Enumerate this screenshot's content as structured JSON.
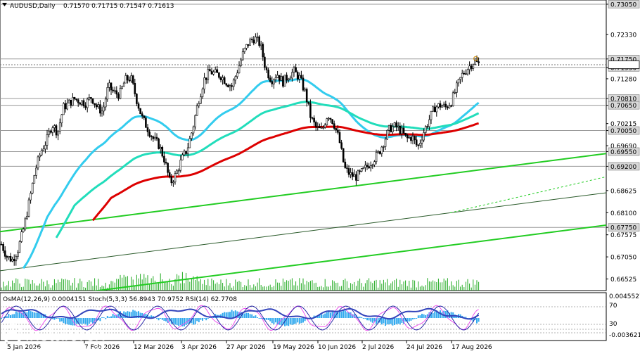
{
  "header": {
    "symbol": "AUDUSD,Daily",
    "ohlc": "0.71570 0.71715 0.71547 0.71613"
  },
  "indicator_header": "OsMA(12,26,9) 0.0004151  Stoch(5,3,3) 56.8943 70.9752  RSI(14) 62.7708",
  "watermark": {
    "brand": "instaforex",
    "tagline": "Instant Forex Trading"
  },
  "colors": {
    "candle": "#000000",
    "ma_fast": "#33ccee",
    "ma_mid": "#22ddbb",
    "ma_slow": "#dd0000",
    "channel": "#22cc22",
    "grid": "#9a9a9a",
    "volume": "#22aa22",
    "osma": "#33aaee",
    "stoch_main": "#1a1aa0",
    "stoch_signal": "#ee44ee",
    "rsi": "#3344bb"
  },
  "chart_data": {
    "type": "candlestick",
    "symbol": "AUDUSD",
    "timeframe": "Daily",
    "ylim": [
      0.6625,
      0.7315
    ],
    "x_tick_labels": [
      "5 Jan 2026",
      "7 Feb 2026",
      "12 Mar 2026",
      "3 Apr 2026",
      "27 Apr 2026",
      "19 May 2026",
      "10 Jun 2026",
      "2 Jul 2026",
      "24 Jul 2026",
      "17 Aug 2026"
    ],
    "y_tick_labels": [
      {
        "value": 0.7305,
        "label": "0.73050",
        "tag": true
      },
      {
        "value": 0.7233,
        "label": "0.72330",
        "tag": false
      },
      {
        "value": 0.7175,
        "label": "0.71750",
        "tag": true
      },
      {
        "value": 0.7155,
        "label": "0.71550",
        "tag": true
      },
      {
        "value": 0.7128,
        "label": "0.71280",
        "tag": false
      },
      {
        "value": 0.7081,
        "label": "0.70810",
        "tag": true
      },
      {
        "value": 0.7065,
        "label": "0.70650",
        "tag": true
      },
      {
        "value": 0.70215,
        "label": "0.70215",
        "tag": false
      },
      {
        "value": 0.7005,
        "label": "0.70050",
        "tag": true
      },
      {
        "value": 0.6969,
        "label": "0.69690",
        "tag": false
      },
      {
        "value": 0.6955,
        "label": "0.69550",
        "tag": true
      },
      {
        "value": 0.692,
        "label": "0.69200",
        "tag": true
      },
      {
        "value": 0.68625,
        "label": "0.68625",
        "tag": false
      },
      {
        "value": 0.681,
        "label": "0.68100",
        "tag": false
      },
      {
        "value": 0.6775,
        "label": "0.67750",
        "tag": true
      },
      {
        "value": 0.67575,
        "label": "0.67575",
        "tag": false
      },
      {
        "value": 0.6705,
        "label": "0.67050",
        "tag": false
      },
      {
        "value": 0.66525,
        "label": "0.66525",
        "tag": false
      }
    ],
    "level_lines": [
      0.7305,
      0.7175,
      0.7155,
      0.7081,
      0.7065,
      0.7005,
      0.6955,
      0.692,
      0.6775
    ],
    "current_price": 0.71613,
    "close_path": [
      [
        0,
        0.6735
      ],
      [
        8,
        0.6705
      ],
      [
        16,
        0.6698
      ],
      [
        24,
        0.6725
      ],
      [
        32,
        0.6775
      ],
      [
        40,
        0.684
      ],
      [
        48,
        0.691
      ],
      [
        56,
        0.6955
      ],
      [
        64,
        0.698
      ],
      [
        72,
        0.702
      ],
      [
        80,
        0.7
      ],
      [
        88,
        0.706
      ],
      [
        96,
        0.707
      ],
      [
        104,
        0.708
      ],
      [
        112,
        0.7075
      ],
      [
        120,
        0.707
      ],
      [
        128,
        0.7085
      ],
      [
        136,
        0.706
      ],
      [
        144,
        0.705
      ],
      [
        152,
        0.711
      ],
      [
        160,
        0.7095
      ],
      [
        168,
        0.709
      ],
      [
        176,
        0.7125
      ],
      [
        184,
        0.713
      ],
      [
        192,
        0.708
      ],
      [
        200,
        0.7035
      ],
      [
        208,
        0.701
      ],
      [
        216,
        0.6985
      ],
      [
        224,
        0.697
      ],
      [
        232,
        0.6935
      ],
      [
        240,
        0.688
      ],
      [
        248,
        0.69
      ],
      [
        256,
        0.6935
      ],
      [
        264,
        0.696
      ],
      [
        272,
        0.701
      ],
      [
        280,
        0.7075
      ],
      [
        288,
        0.7125
      ],
      [
        296,
        0.7145
      ],
      [
        304,
        0.714
      ],
      [
        312,
        0.7135
      ],
      [
        320,
        0.712
      ],
      [
        328,
        0.711
      ],
      [
        336,
        0.715
      ],
      [
        344,
        0.719
      ],
      [
        352,
        0.7215
      ],
      [
        360,
        0.7225
      ],
      [
        368,
        0.721
      ],
      [
        376,
        0.715
      ],
      [
        384,
        0.7125
      ],
      [
        392,
        0.714
      ],
      [
        400,
        0.712
      ],
      [
        408,
        0.7135
      ],
      [
        416,
        0.7145
      ],
      [
        424,
        0.713
      ],
      [
        432,
        0.7095
      ],
      [
        440,
        0.7035
      ],
      [
        448,
        0.701
      ],
      [
        456,
        0.7005
      ],
      [
        464,
        0.7045
      ],
      [
        472,
        0.7025
      ],
      [
        480,
        0.6985
      ],
      [
        488,
        0.6915
      ],
      [
        496,
        0.69
      ],
      [
        504,
        0.6895
      ],
      [
        512,
        0.6905
      ],
      [
        520,
        0.692
      ],
      [
        528,
        0.6935
      ],
      [
        536,
        0.695
      ],
      [
        544,
        0.698
      ],
      [
        552,
        0.701
      ],
      [
        560,
        0.7015
      ],
      [
        568,
        0.7005
      ],
      [
        576,
        0.6985
      ],
      [
        584,
        0.699
      ],
      [
        592,
        0.6965
      ],
      [
        600,
        0.7
      ],
      [
        608,
        0.703
      ],
      [
        616,
        0.706
      ],
      [
        624,
        0.7065
      ],
      [
        632,
        0.706
      ],
      [
        640,
        0.7075
      ],
      [
        648,
        0.711
      ],
      [
        656,
        0.714
      ],
      [
        664,
        0.7155
      ],
      [
        672,
        0.717
      ],
      [
        680,
        0.7161
      ]
    ],
    "indicators": [
      "OsMA(12,26,9)",
      "Stoch(5,3,3)",
      "RSI(14)"
    ],
    "indicator_scale_labels": [
      {
        "label": "0.0045527"
      },
      {
        "label": "70"
      },
      {
        "label": "30"
      },
      {
        "label": "-0.0036214"
      }
    ]
  }
}
